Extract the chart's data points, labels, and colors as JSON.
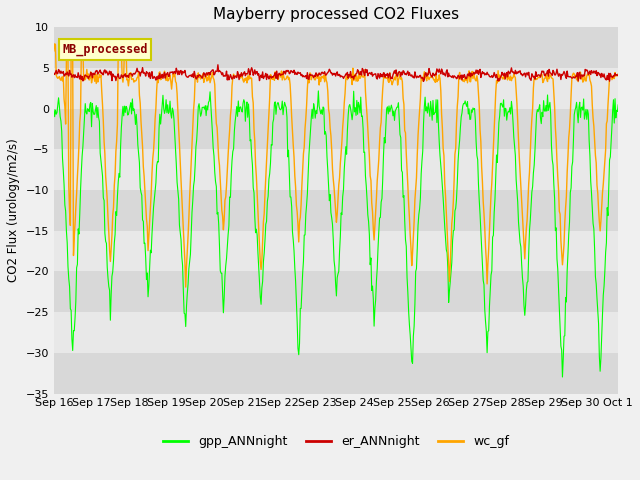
{
  "title": "Mayberry processed CO2 Fluxes",
  "ylabel": "CO2 Flux (urology/m2/s)",
  "ylim": [
    -35,
    10
  ],
  "yticks": [
    -35,
    -30,
    -25,
    -20,
    -15,
    -10,
    -5,
    0,
    5,
    10
  ],
  "fig_bg_color": "#f0f0f0",
  "plot_bg_color": "#e8e8e8",
  "band_color_light": "#e8e8e8",
  "band_color_dark": "#d8d8d8",
  "legend_label": "MB_processed",
  "legend_text_color": "#8b0000",
  "legend_bg_color": "#ffffcc",
  "legend_border_color": "#cccc00",
  "colors": {
    "gpp": "#00ff00",
    "er": "#cc0000",
    "wc": "#ffa500"
  },
  "n_days": 15,
  "n_points_per_day": 48,
  "start_day": 16,
  "x_tick_labels": [
    "Sep 16",
    "Sep 17",
    "Sep 18",
    "Sep 19",
    "Sep 20",
    "Sep 21",
    "Sep 22",
    "Sep 23",
    "Sep 24",
    "Sep 25",
    "Sep 26",
    "Sep 27",
    "Sep 28",
    "Sep 29",
    "Sep 30",
    "Oct 1"
  ]
}
